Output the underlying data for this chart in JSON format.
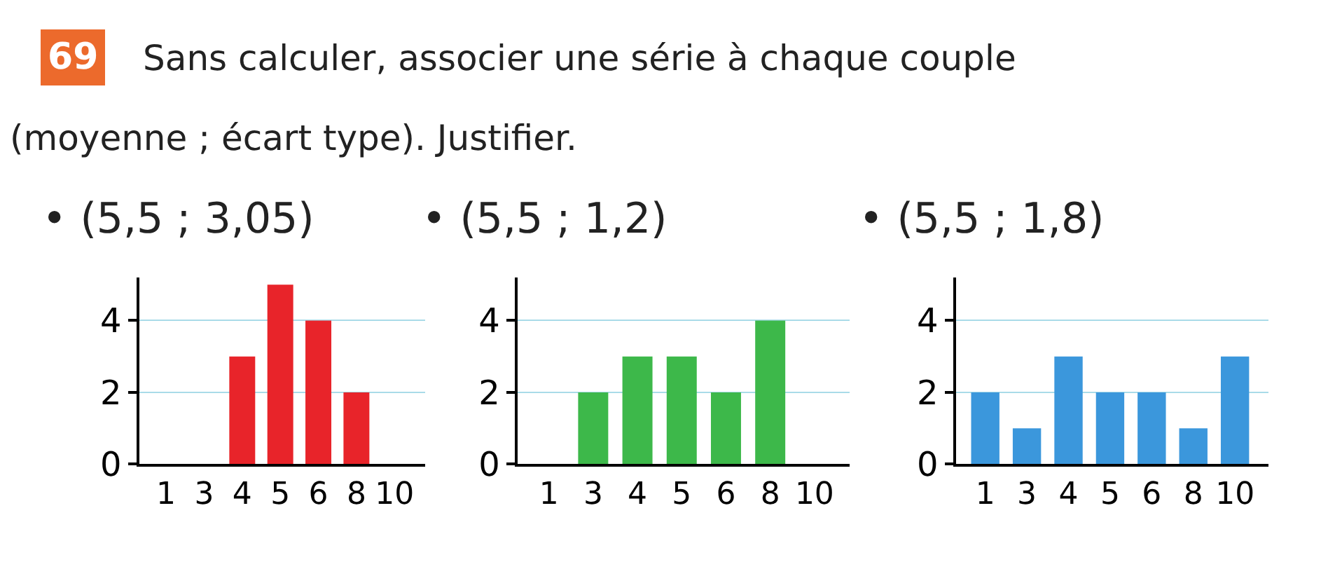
{
  "chart_data": [
    {
      "type": "bar",
      "title": "Sans calculer, associer une série à chaque couple (moyenne ; écart type). Justifier.",
      "annotations": [
        "69"
      ],
      "subtitle": "• (5,5 ; 3,05)",
      "categories": [
        "1",
        "3",
        "4",
        "5",
        "6",
        "8",
        "10"
      ],
      "series": [
        {
          "color": "#e8242a",
          "values": [
            0,
            0,
            3,
            5,
            4,
            2,
            0
          ]
        }
      ],
      "ylim": [
        0,
        5.2
      ],
      "yticks": [
        0,
        2,
        4
      ],
      "grid": "y"
    },
    {
      "type": "bar",
      "subtitle": "• (5,5 ; 1,2)",
      "categories": [
        "1",
        "3",
        "4",
        "5",
        "6",
        "8",
        "10"
      ],
      "series": [
        {
          "color": "#3db84a",
          "values": [
            0,
            2,
            3,
            3,
            2,
            4,
            0
          ]
        }
      ],
      "ylim": [
        0,
        5.2
      ],
      "yticks": [
        0,
        2,
        4
      ],
      "grid": "y"
    },
    {
      "type": "bar",
      "subtitle": "• (5,5 ; 1,8)",
      "categories": [
        "1",
        "3",
        "4",
        "5",
        "6",
        "8",
        "10"
      ],
      "series": [
        {
          "color": "#3b97dc",
          "values": [
            2,
            1,
            3,
            2,
            2,
            1,
            3
          ]
        }
      ],
      "ylim": [
        0,
        5.2
      ],
      "yticks": [
        0,
        2,
        4
      ],
      "grid": "y"
    }
  ]
}
